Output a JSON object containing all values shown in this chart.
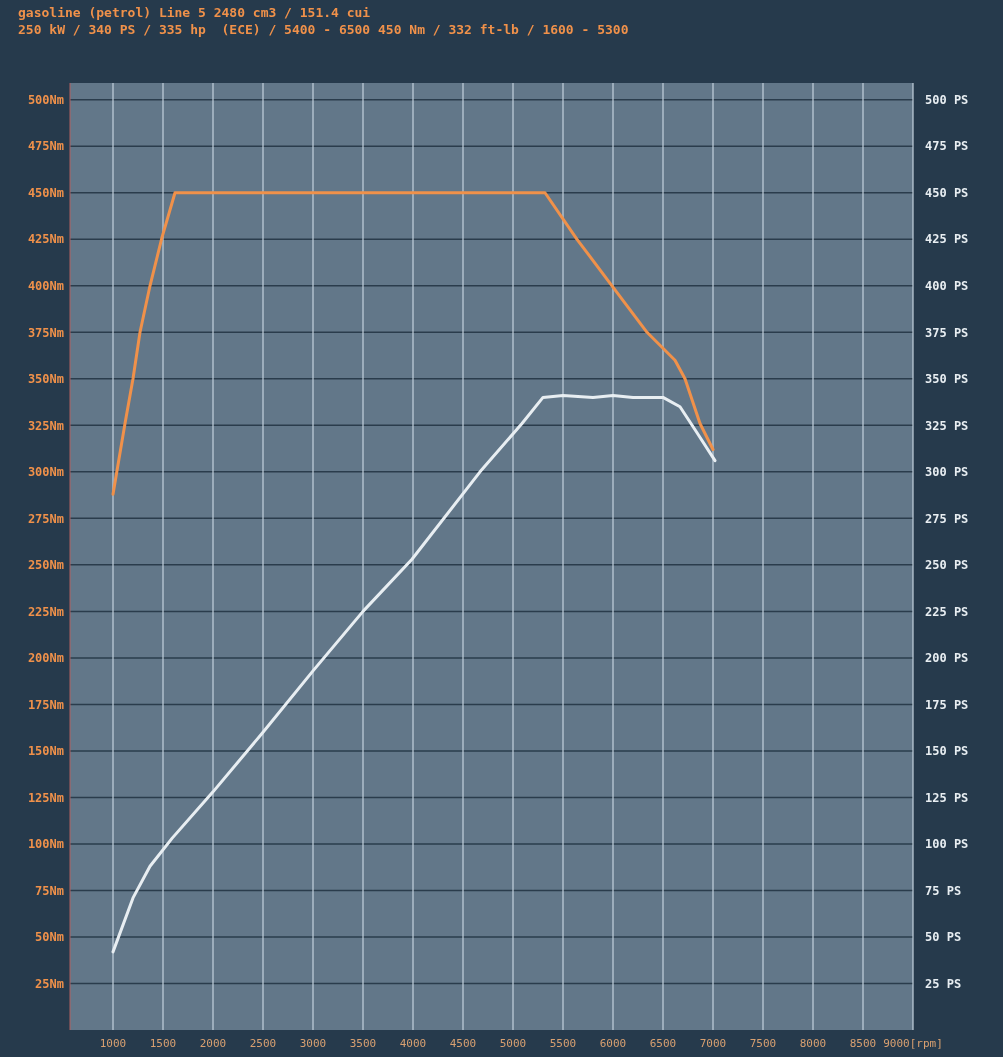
{
  "chart_data": {
    "type": "line",
    "title": "gasoline (petrol) Line 5 2480 cm3 / 151.4 cui",
    "subtitle": "250 kW / 340 PS / 335 hp  (ECE) / 5400 - 6500 450 Nm / 332 ft-lb / 1600 - 5300",
    "xlim": [
      570,
      9000
    ],
    "xticks": [
      1000,
      1500,
      2000,
      2500,
      3000,
      3500,
      4000,
      4500,
      5000,
      5500,
      6000,
      6500,
      7000,
      7500,
      8000,
      8500,
      {
        "value": 9000,
        "label": "9000[rpm]"
      }
    ],
    "ylim": [
      0,
      509
    ],
    "yticks": [
      {
        "value": 25,
        "label": "25Nm"
      },
      {
        "value": 50,
        "label": "50Nm"
      },
      {
        "value": 75,
        "label": "75Nm"
      },
      {
        "value": 100,
        "label": "100Nm"
      },
      {
        "value": 125,
        "label": "125Nm"
      },
      {
        "value": 150,
        "label": "150Nm"
      },
      {
        "value": 175,
        "label": "175Nm"
      },
      {
        "value": 200,
        "label": "200Nm"
      },
      {
        "value": 225,
        "label": "225Nm"
      },
      {
        "value": 250,
        "label": "250Nm"
      },
      {
        "value": 275,
        "label": "275Nm"
      },
      {
        "value": 300,
        "label": "300Nm"
      },
      {
        "value": 325,
        "label": "325Nm"
      },
      {
        "value": 350,
        "label": "350Nm"
      },
      {
        "value": 375,
        "label": "375Nm"
      },
      {
        "value": 400,
        "label": "400Nm"
      },
      {
        "value": 425,
        "label": "425Nm"
      },
      {
        "value": 450,
        "label": "450Nm"
      },
      {
        "value": 475,
        "label": "475Nm"
      },
      {
        "value": 500,
        "label": "500Nm"
      }
    ],
    "y2lim": [
      0,
      509
    ],
    "y2ticks": [
      {
        "value": 25,
        "label": "25 PS"
      },
      {
        "value": 50,
        "label": "50 PS"
      },
      {
        "value": 75,
        "label": "75 PS"
      },
      {
        "value": 100,
        "label": "100 PS"
      },
      {
        "value": 125,
        "label": "125 PS"
      },
      {
        "value": 150,
        "label": "150 PS"
      },
      {
        "value": 175,
        "label": "175 PS"
      },
      {
        "value": 200,
        "label": "200 PS"
      },
      {
        "value": 225,
        "label": "225 PS"
      },
      {
        "value": 250,
        "label": "250 PS"
      },
      {
        "value": 275,
        "label": "275 PS"
      },
      {
        "value": 300,
        "label": "300 PS"
      },
      {
        "value": 325,
        "label": "325 PS"
      },
      {
        "value": 350,
        "label": "350 PS"
      },
      {
        "value": 375,
        "label": "375 PS"
      },
      {
        "value": 400,
        "label": "400 PS"
      },
      {
        "value": 425,
        "label": "425 PS"
      },
      {
        "value": 450,
        "label": "450 PS"
      },
      {
        "value": 475,
        "label": "475 PS"
      },
      {
        "value": 500,
        "label": "500 PS"
      }
    ],
    "grid": true,
    "series": [
      {
        "color": "#f0914a",
        "x": [
          1000,
          1120,
          1200,
          1270,
          1370,
          1490,
          1620,
          5320,
          5640,
          5990,
          6340,
          6620,
          6720,
          6870,
          7000
        ],
        "values": [
          288,
          326,
          350,
          375,
          400,
          426,
          450,
          450,
          425,
          400,
          375,
          360,
          350,
          326,
          312
        ]
      },
      {
        "color": "#e8eef2",
        "x": [
          1000,
          1200,
          1370,
          1590,
          2000,
          2500,
          3000,
          3500,
          3990,
          4670,
          5090,
          5300,
          5500,
          5800,
          6000,
          6200,
          6500,
          6670,
          6840,
          7020
        ],
        "values": [
          42,
          71,
          88,
          103,
          128,
          160,
          193,
          225,
          253,
          300,
          326,
          340,
          341,
          340,
          341,
          340,
          340,
          335,
          321,
          306
        ]
      }
    ]
  }
}
